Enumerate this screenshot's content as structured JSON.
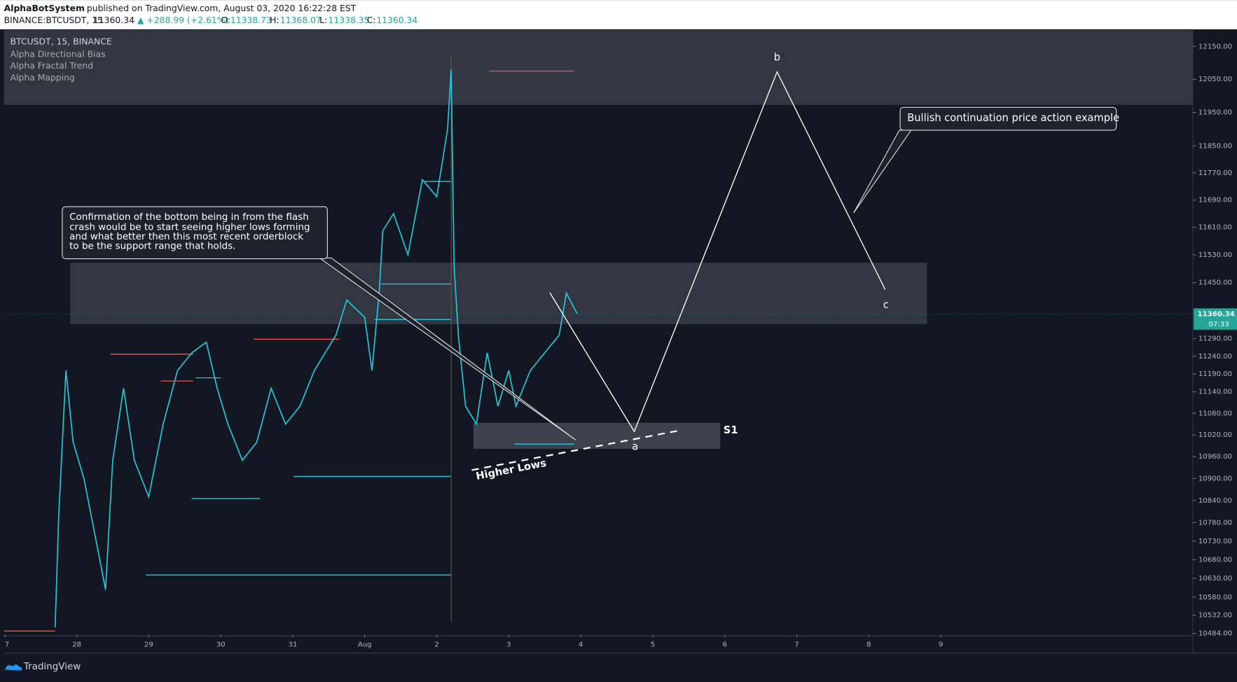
{
  "header": {
    "author": "AlphaBotSystem",
    "published": "published on TradingView.com, August 03, 2020 16:22:28 EST",
    "symbol": "BINANCE:BTCUSDT, 15",
    "last": "11360.34",
    "change": "▲ +288.99 (+2.61%)",
    "open_label": "O:",
    "open": "11338.73",
    "high_label": "H:",
    "high": "11368.07",
    "low_label": "L:",
    "low": "11338.35",
    "close_label": "C:",
    "close": "11360.34"
  },
  "legend": {
    "title": "BTCUSDT, 15, BINANCE",
    "indicators": [
      "Alpha Directional Bias",
      "Alpha Fractal Trend",
      "Alpha Mapping"
    ]
  },
  "chart_data": {
    "type": "line",
    "color": "#26c6da",
    "log_scale": true,
    "x": [
      0.7,
      0.75,
      0.85,
      0.95,
      1.1,
      1.3,
      1.4,
      1.5,
      1.65,
      1.8,
      2.0,
      2.2,
      2.4,
      2.6,
      2.8,
      2.95,
      3.1,
      3.3,
      3.5,
      3.7,
      3.9,
      4.1,
      4.3,
      4.6,
      4.75,
      5.0,
      5.1,
      5.2,
      5.25,
      5.4,
      5.6,
      5.8,
      6.0,
      6.15,
      6.2,
      6.24,
      6.3,
      6.4,
      6.55,
      6.7,
      6.85,
      7.0,
      7.1,
      7.3,
      7.5,
      7.7,
      7.8,
      7.95
    ],
    "values": [
      10500,
      10800,
      11200,
      11000,
      10900,
      10700,
      10600,
      10950,
      11150,
      10950,
      10850,
      11050,
      11200,
      11250,
      11280,
      11150,
      11050,
      10950,
      11000,
      11150,
      11050,
      11100,
      11200,
      11300,
      11400,
      11350,
      11200,
      11420,
      11600,
      11650,
      11530,
      11750,
      11700,
      11900,
      12080,
      11500,
      11300,
      11100,
      11050,
      11250,
      11100,
      11200,
      11100,
      11200,
      11250,
      11300,
      11420,
      11360.34
    ],
    "xlim": [
      0,
      16.5
    ],
    "ylim": [
      10480,
      12200
    ],
    "xticks": [
      {
        "value": 0,
        "label": "7"
      },
      {
        "value": 1,
        "label": "28"
      },
      {
        "value": 2,
        "label": "29"
      },
      {
        "value": 3,
        "label": "30"
      },
      {
        "value": 4,
        "label": "31"
      },
      {
        "value": 5,
        "label": "Aug"
      },
      {
        "value": 6,
        "label": "2"
      },
      {
        "value": 7,
        "label": "3"
      },
      {
        "value": 8,
        "label": "4"
      },
      {
        "value": 9,
        "label": "5"
      },
      {
        "value": 10,
        "label": "6"
      },
      {
        "value": 11,
        "label": "7"
      },
      {
        "value": 12,
        "label": "8"
      },
      {
        "value": 13,
        "label": "9"
      }
    ],
    "yticks": [
      {
        "value": 12150,
        "label": "12150.00"
      },
      {
        "value": 12050,
        "label": "12050.00"
      },
      {
        "value": 11950,
        "label": "11950.00"
      },
      {
        "value": 11850,
        "label": "11850.00"
      },
      {
        "value": 11770,
        "label": "11770.00"
      },
      {
        "value": 11690,
        "label": "11690.00"
      },
      {
        "value": 11610,
        "label": "11610.00"
      },
      {
        "value": 11530,
        "label": "11530.00"
      },
      {
        "value": 11450,
        "label": "11450.00"
      },
      {
        "value": 11290,
        "label": "11290.00"
      },
      {
        "value": 11240,
        "label": "11240.00"
      },
      {
        "value": 11190,
        "label": "11190.00"
      },
      {
        "value": 11140,
        "label": "11140.00"
      },
      {
        "value": 11080,
        "label": "11080.00"
      },
      {
        "value": 11020,
        "label": "11020.00"
      },
      {
        "value": 10960,
        "label": "10960.00"
      },
      {
        "value": 10900,
        "label": "10900.00"
      },
      {
        "value": 10840,
        "label": "10840.00"
      },
      {
        "value": 10780,
        "label": "10780.00"
      },
      {
        "value": 10730,
        "label": "10730.00"
      },
      {
        "value": 10680,
        "label": "10680.00"
      },
      {
        "value": 10630,
        "label": "10630.00"
      },
      {
        "value": 10580,
        "label": "10580.00"
      },
      {
        "value": 10532,
        "label": "10532.00"
      },
      {
        "value": 10484,
        "label": "10484.00"
      }
    ],
    "last_value": 11360.34,
    "countdown": "07:33",
    "annotations": {
      "callout_1": [
        "Confirmation of the bottom being in from the flash",
        "crash would be to start seeing higher lows forming",
        "and what better then this most recent orderblock",
        "to be the support range that holds."
      ],
      "callout_2": "Bullish continuation price action example",
      "wave_a": "a",
      "wave_b": "b",
      "wave_c": "c",
      "support": "S1",
      "trendline": "Higher Lows"
    }
  },
  "footer": "TradingView"
}
